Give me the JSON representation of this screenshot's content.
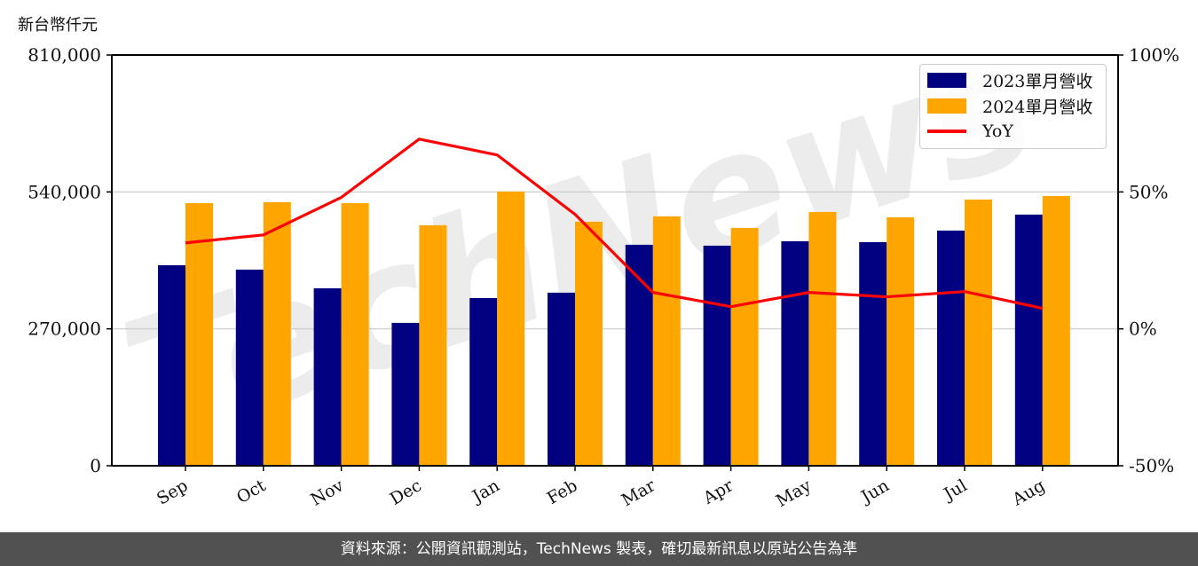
{
  "unit_label": "新台幣仟元",
  "footer": "資料來源：公開資訊觀測站，TechNews 製表，確切最新訊息以原站公告為準",
  "watermark": "TechNews",
  "colors": {
    "series_2023": "#000080",
    "series_2024": "#FFA500",
    "yoy": "#FF0000",
    "grid": "#d3d3d3",
    "footer_bg": "#515151"
  },
  "legend": [
    {
      "label": "2023單月營收",
      "type": "bar",
      "color": "#000080"
    },
    {
      "label": "2024單月營收",
      "type": "bar",
      "color": "#FFA500"
    },
    {
      "label": "YoY",
      "type": "line",
      "color": "#FF0000"
    }
  ],
  "chart_data": {
    "type": "bar",
    "title": "",
    "xlabel": "",
    "ylabel": "新台幣仟元",
    "ylim": [
      0,
      810000
    ],
    "y_ticks": [
      "0",
      "270,000",
      "540,000",
      "810,000"
    ],
    "y2lim": [
      -50,
      100
    ],
    "y2_ticks": [
      "-50%",
      "0%",
      "50%",
      "100%"
    ],
    "grid": true,
    "legend_position": "upper right",
    "categories": [
      "Sep",
      "Oct",
      "Nov",
      "Dec",
      "Jan",
      "Feb",
      "Mar",
      "Apr",
      "May",
      "Jun",
      "Jul",
      "Aug"
    ],
    "series": [
      {
        "name": "2023單月營收",
        "type": "bar",
        "axis": "left",
        "values": [
          395500,
          386800,
          350000,
          281800,
          330800,
          341300,
          435800,
          434000,
          442800,
          441000,
          463800,
          495300
        ]
      },
      {
        "name": "2024單月營收",
        "type": "bar",
        "axis": "left",
        "values": [
          518000,
          519800,
          518000,
          474300,
          540800,
          481300,
          491800,
          469000,
          500500,
          490000,
          525000,
          532000
        ]
      },
      {
        "name": "YoY",
        "type": "line",
        "axis": "right",
        "unit": "%",
        "values": [
          31.4,
          34.3,
          48.0,
          69.3,
          63.5,
          41.8,
          13.3,
          8.1,
          13.3,
          11.7,
          13.6,
          7.5
        ]
      }
    ]
  }
}
